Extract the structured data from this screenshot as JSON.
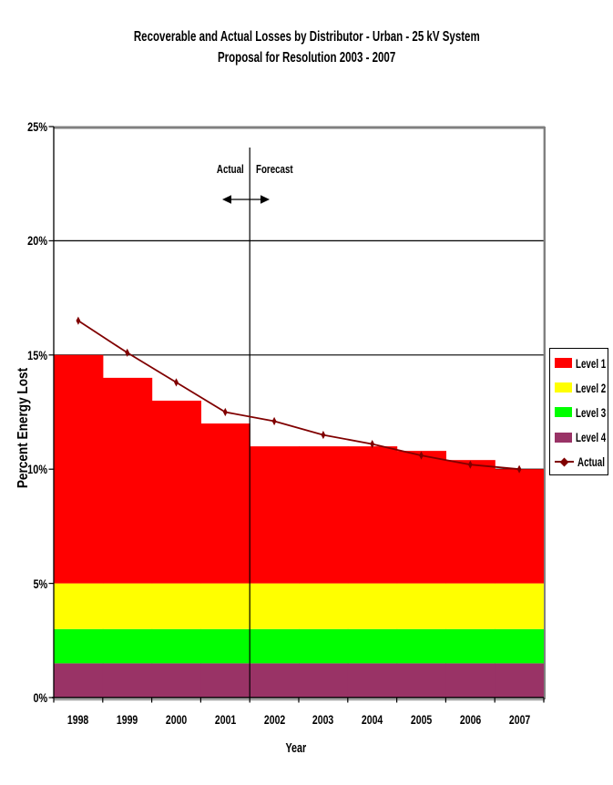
{
  "chart_data": {
    "type": "combo: stacked-bar + line",
    "title": "Recoverable and Actual Losses by Distributor - Urban - 25 kV System",
    "subtitle": "Proposal for Resolution 2003 - 2007",
    "xlabel": "Year",
    "ylabel": "Percent Energy Lost",
    "categories": [
      "1998",
      "1999",
      "2000",
      "2001",
      "2002",
      "2003",
      "2004",
      "2005",
      "2006",
      "2007"
    ],
    "bar_series": [
      {
        "name": "Level 1",
        "color": "#FF0000",
        "values": [
          10,
          9,
          8,
          7,
          6,
          6,
          6,
          5.8,
          5.4,
          5
        ]
      },
      {
        "name": "Level 2",
        "color": "#FFFF00",
        "values": [
          2,
          2,
          2,
          2,
          2,
          2,
          2,
          2,
          2,
          2
        ]
      },
      {
        "name": "Level 3",
        "color": "#00FF00",
        "values": [
          1.5,
          1.5,
          1.5,
          1.5,
          1.5,
          1.5,
          1.5,
          1.5,
          1.5,
          1.5
        ]
      },
      {
        "name": "Level 4",
        "color": "#993366",
        "values": [
          1.5,
          1.5,
          1.5,
          1.5,
          1.5,
          1.5,
          1.5,
          1.5,
          1.5,
          1.5
        ]
      }
    ],
    "stack_order_bottom_to_top": [
      "Level 4",
      "Level 3",
      "Level 2",
      "Level 1"
    ],
    "stack_totals_pct": [
      15,
      14,
      13,
      12,
      11,
      11,
      11,
      10.8,
      10.4,
      10
    ],
    "line_series": {
      "name": "Actual",
      "color": "#800000",
      "marker": "diamond",
      "values": [
        16.5,
        15.1,
        13.8,
        12.5,
        12.1,
        11.5,
        11.1,
        10.6,
        10.2,
        10.0
      ]
    },
    "ylim": [
      0,
      25
    ],
    "ytick_step": 5,
    "yticks": [
      "0%",
      "5%",
      "10%",
      "15%",
      "20%",
      "25%"
    ],
    "grid": "horizontal black gridlines every 5%",
    "legend_position": "right",
    "annotations": {
      "actual_zone_label": "Actual",
      "forecast_zone_label": "Forecast",
      "divider_between": [
        "2001",
        "2002"
      ],
      "divider_index": 4,
      "arrow": "double-headed horizontal arrow across divider"
    },
    "colors": {
      "axis": "#000000",
      "plot_border": "#808080",
      "text": "#000000"
    }
  }
}
